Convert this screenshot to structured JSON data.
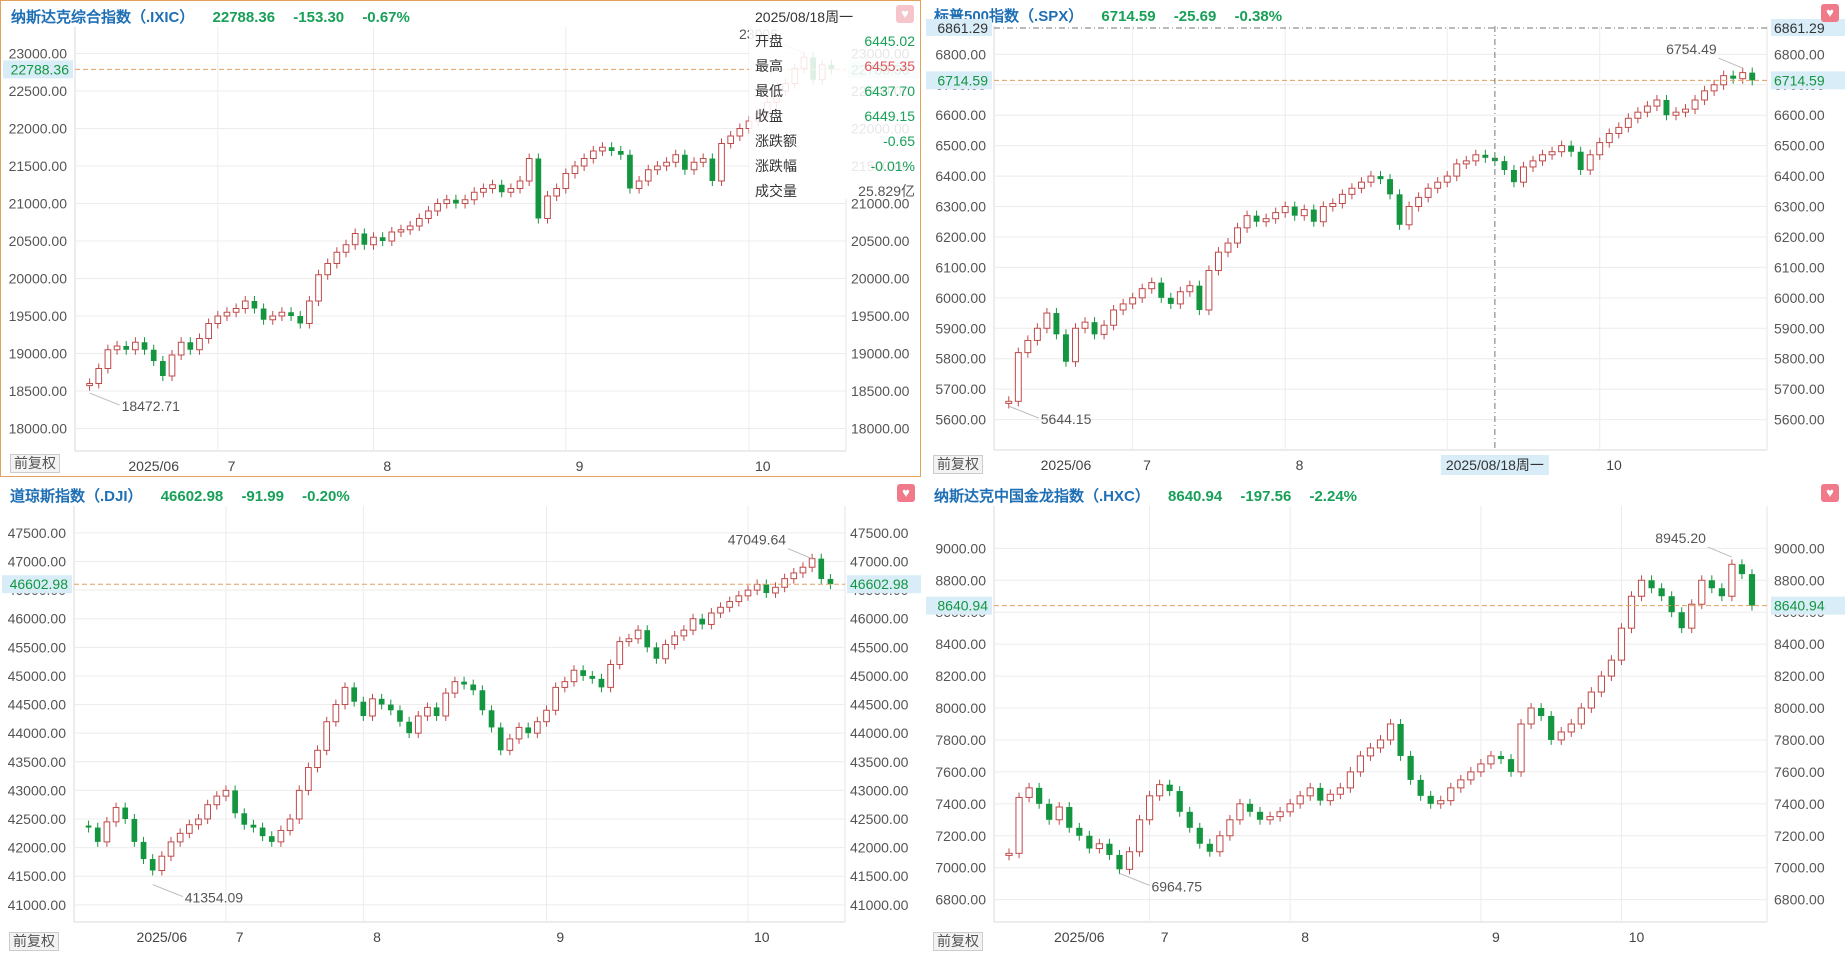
{
  "x_month_labels": [
    "2025/06",
    "7",
    "8",
    "9",
    "10"
  ],
  "adjust_label": "前复权",
  "colors": {
    "up": "#c04a4a",
    "down": "#13963f",
    "grid": "#ececec",
    "ref": "#e0a060",
    "label_bg": "#d8edf8",
    "label_text": "#13963f"
  },
  "icons": [
    "heart-icon"
  ],
  "tooltip": {
    "date": "2025/08/18周一",
    "rows": [
      {
        "label": "开盘",
        "value": "6445.02",
        "tone": "dn"
      },
      {
        "label": "最高",
        "value": "6455.35",
        "tone": "up"
      },
      {
        "label": "最低",
        "value": "6437.70",
        "tone": "dn"
      },
      {
        "label": "收盘",
        "value": "6449.15",
        "tone": "dn"
      },
      {
        "label": "涨跌额",
        "value": "-0.65",
        "tone": "dn"
      },
      {
        "label": "涨跌幅",
        "value": "-0.01%",
        "tone": "dn"
      },
      {
        "label": "成交量",
        "value": "25.829亿",
        "tone": "nt"
      }
    ]
  },
  "cursor": {
    "date_label": "2025/08/18周一",
    "price_label": "6861.29"
  },
  "panels": [
    {
      "title": "纳斯达克综合指数（.IXIC）",
      "last": "22788.36",
      "change": "-153.30",
      "pct": "-0.67%",
      "chart_data": {
        "type": "candlestick",
        "ylim": [
          17700,
          23300
        ],
        "y_ticks": [
          "18000.00",
          "18500.00",
          "19000.00",
          "19500.00",
          "20000.00",
          "20500.00",
          "21000.00",
          "21500.00",
          "22000.00",
          "22500.00",
          "23000.00"
        ],
        "last_label": "22788.36",
        "last_value": 22788.36,
        "low_label": "18472.71",
        "low_value": 18472.71,
        "high_label": "23006",
        "high_value": 23006,
        "closes": [
          18600,
          18800,
          19050,
          19100,
          19050,
          19150,
          19050,
          18900,
          18700,
          18980,
          19150,
          19050,
          19200,
          19400,
          19500,
          19550,
          19600,
          19700,
          19600,
          19450,
          19500,
          19550,
          19500,
          19400,
          19700,
          20050,
          20200,
          20350,
          20450,
          20600,
          20450,
          20550,
          20500,
          20620,
          20650,
          20700,
          20800,
          20900,
          21000,
          21050,
          21000,
          21050,
          21150,
          21200,
          21250,
          21150,
          21200,
          21300,
          21600,
          20800,
          21100,
          21200,
          21400,
          21500,
          21600,
          21700,
          21750,
          21700,
          21650,
          21200,
          21300,
          21450,
          21500,
          21550,
          21650,
          21450,
          21550,
          21600,
          21300,
          21800,
          21900,
          22000,
          22100,
          22200,
          22350,
          22500,
          22600,
          22800,
          22950,
          22650,
          22850,
          22788.36
        ],
        "month_breaks": [
          14,
          31,
          52,
          72
        ]
      }
    },
    {
      "title": "标普500指数（.SPX）",
      "last": "6714.59",
      "change": "-25.69",
      "pct": "-0.38%",
      "chart_data": {
        "type": "candlestick",
        "ylim": [
          5500,
          6880
        ],
        "y_ticks": [
          "5600.00",
          "5700.00",
          "5800.00",
          "5900.00",
          "6000.00",
          "6100.00",
          "6200.00",
          "6300.00",
          "6400.00",
          "6500.00",
          "6600.00",
          "6700.00",
          "6800.00"
        ],
        "last_label": "6714.59",
        "last_value": 6714.59,
        "low_label": "5644.15",
        "low_value": 5644.15,
        "high_label": "6754.49",
        "high_value": 6754.49,
        "closes": [
          5660,
          5820,
          5860,
          5900,
          5950,
          5880,
          5790,
          5900,
          5920,
          5880,
          5910,
          5960,
          5980,
          6000,
          6030,
          6050,
          6000,
          5980,
          6020,
          6040,
          5960,
          6090,
          6150,
          6180,
          6230,
          6270,
          6250,
          6260,
          6280,
          6300,
          6270,
          6290,
          6250,
          6300,
          6310,
          6340,
          6360,
          6380,
          6400,
          6390,
          6340,
          6240,
          6300,
          6330,
          6360,
          6380,
          6400,
          6440,
          6450,
          6470,
          6460,
          6449.15,
          6420,
          6380,
          6430,
          6450,
          6470,
          6480,
          6500,
          6480,
          6420,
          6470,
          6510,
          6540,
          6560,
          6590,
          6610,
          6630,
          6650,
          6600,
          6610,
          6620,
          6650,
          6680,
          6700,
          6730,
          6720,
          6740,
          6714.59
        ],
        "month_breaks": [
          13,
          29,
          46,
          62
        ]
      }
    },
    {
      "title": "道琼斯指数（.DJI）",
      "last": "46602.98",
      "change": "-91.99",
      "pct": "-0.20%",
      "chart_data": {
        "type": "candlestick",
        "ylim": [
          40700,
          47900
        ],
        "y_ticks": [
          "41000.00",
          "41500.00",
          "42000.00",
          "42500.00",
          "43000.00",
          "43500.00",
          "44000.00",
          "44500.00",
          "45000.00",
          "45500.00",
          "46000.00",
          "46500.00",
          "47000.00",
          "47500.00"
        ],
        "last_label": "46602.98",
        "last_value": 46602.98,
        "low_label": "41354.09",
        "low_value": 41354.09,
        "high_label": "47049.64",
        "high_value": 47049.64,
        "closes": [
          42350,
          42100,
          42450,
          42700,
          42500,
          42100,
          41800,
          41600,
          41850,
          42100,
          42250,
          42400,
          42500,
          42750,
          42900,
          43000,
          42600,
          42400,
          42350,
          42200,
          42100,
          42300,
          42500,
          43000,
          43400,
          43700,
          44200,
          44500,
          44800,
          44550,
          44300,
          44600,
          44500,
          44400,
          44200,
          44000,
          44300,
          44450,
          44300,
          44700,
          44900,
          44850,
          44750,
          44400,
          44100,
          43700,
          43900,
          44100,
          44000,
          44200,
          44400,
          44800,
          44900,
          45100,
          45000,
          44950,
          44800,
          45200,
          45600,
          45650,
          45800,
          45500,
          45300,
          45550,
          45700,
          45800,
          46000,
          45900,
          46100,
          46200,
          46300,
          46400,
          46500,
          46600,
          46450,
          46550,
          46700,
          46800,
          46900,
          47050,
          46695,
          46602.98
        ],
        "month_breaks": [
          15,
          30,
          50,
          72
        ]
      }
    },
    {
      "title": "纳斯达克中国金龙指数（.HXC）",
      "last": "8640.94",
      "change": "-197.56",
      "pct": "-2.24%",
      "chart_data": {
        "type": "candlestick",
        "ylim": [
          6660,
          9240
        ],
        "y_ticks": [
          "6800.00",
          "7000.00",
          "7200.00",
          "7400.00",
          "7600.00",
          "7800.00",
          "8000.00",
          "8200.00",
          "8400.00",
          "8600.00",
          "8800.00",
          "9000.00"
        ],
        "last_label": "8640.94",
        "last_value": 8640.94,
        "low_label": "6964.75",
        "low_value": 6964.75,
        "high_label": "8945.20",
        "high_value": 8945.2,
        "closes": [
          7090,
          7440,
          7500,
          7400,
          7300,
          7380,
          7250,
          7200,
          7120,
          7150,
          7080,
          6990,
          7100,
          7300,
          7450,
          7520,
          7480,
          7350,
          7250,
          7150,
          7100,
          7200,
          7300,
          7400,
          7350,
          7300,
          7320,
          7350,
          7400,
          7450,
          7500,
          7420,
          7460,
          7500,
          7600,
          7700,
          7750,
          7800,
          7900,
          7700,
          7550,
          7450,
          7400,
          7420,
          7500,
          7550,
          7600,
          7650,
          7700,
          7680,
          7600,
          7900,
          8000,
          7950,
          7800,
          7850,
          7900,
          8000,
          8100,
          8200,
          8300,
          8500,
          8700,
          8800,
          8750,
          8700,
          8600,
          8500,
          8650,
          8800,
          8750,
          8700,
          8900,
          8838.5,
          8640.94
        ],
        "month_breaks": [
          14,
          28,
          47,
          61
        ]
      }
    }
  ]
}
